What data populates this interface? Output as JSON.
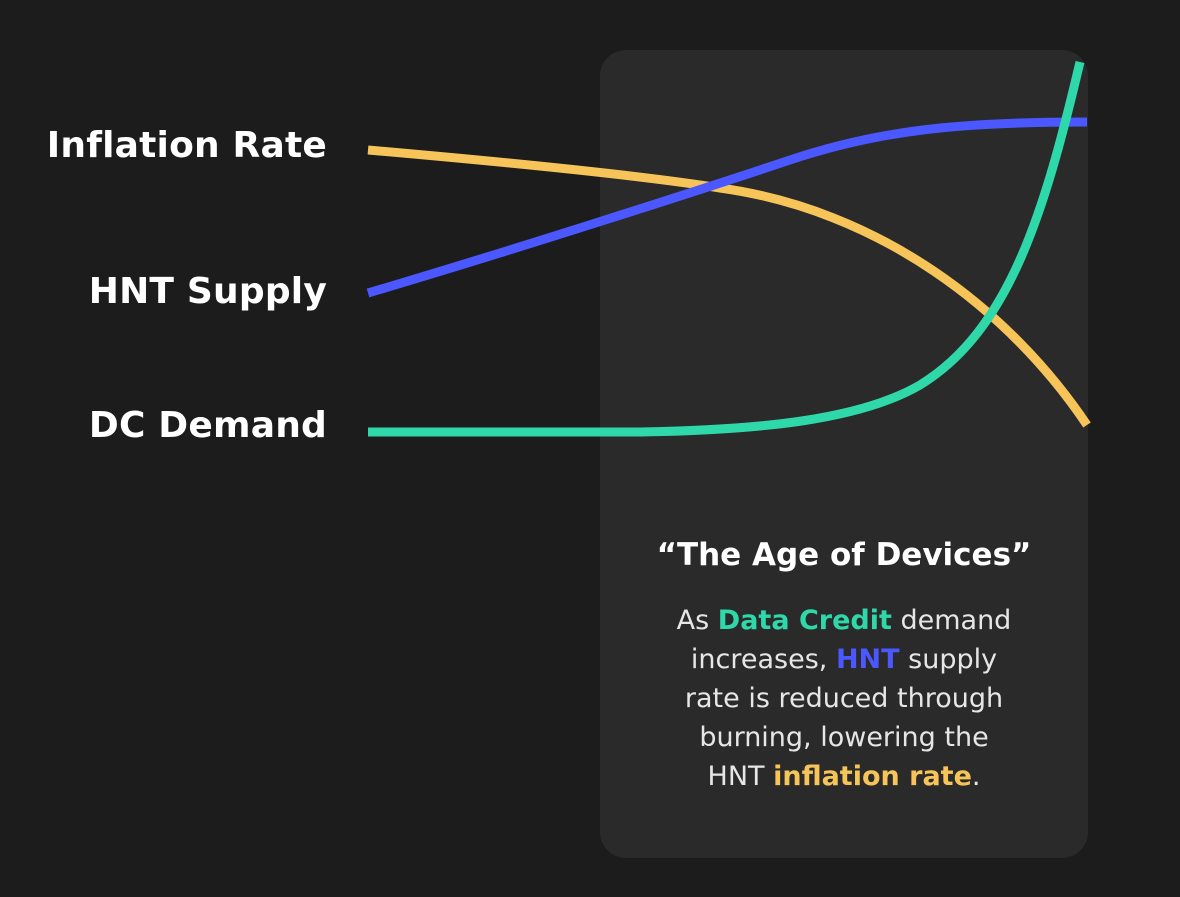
{
  "colors": {
    "background": "#1c1c1c",
    "panel": "#2a2a2a",
    "inflation": "#f7c45a",
    "supply": "#4b57ff",
    "demand": "#2fd8a8"
  },
  "series": [
    {
      "label": "Inflation Rate",
      "color": "#f7c45a",
      "trend": "decreasing"
    },
    {
      "label": "HNT Supply",
      "color": "#4b57ff",
      "trend": "increasing then plateau"
    },
    {
      "label": "DC Demand",
      "color": "#2fd8a8",
      "trend": "flat then exponential rise"
    }
  ],
  "caption": {
    "title": "“The Age of Devices”",
    "body": {
      "p1": "As ",
      "dc": "Data Credit",
      "p2": " demand increases, ",
      "hnt": "HNT",
      "p3": " supply rate is reduced through burning,  lowering the HNT ",
      "inflation": "inflation rate",
      "p4": "."
    }
  }
}
